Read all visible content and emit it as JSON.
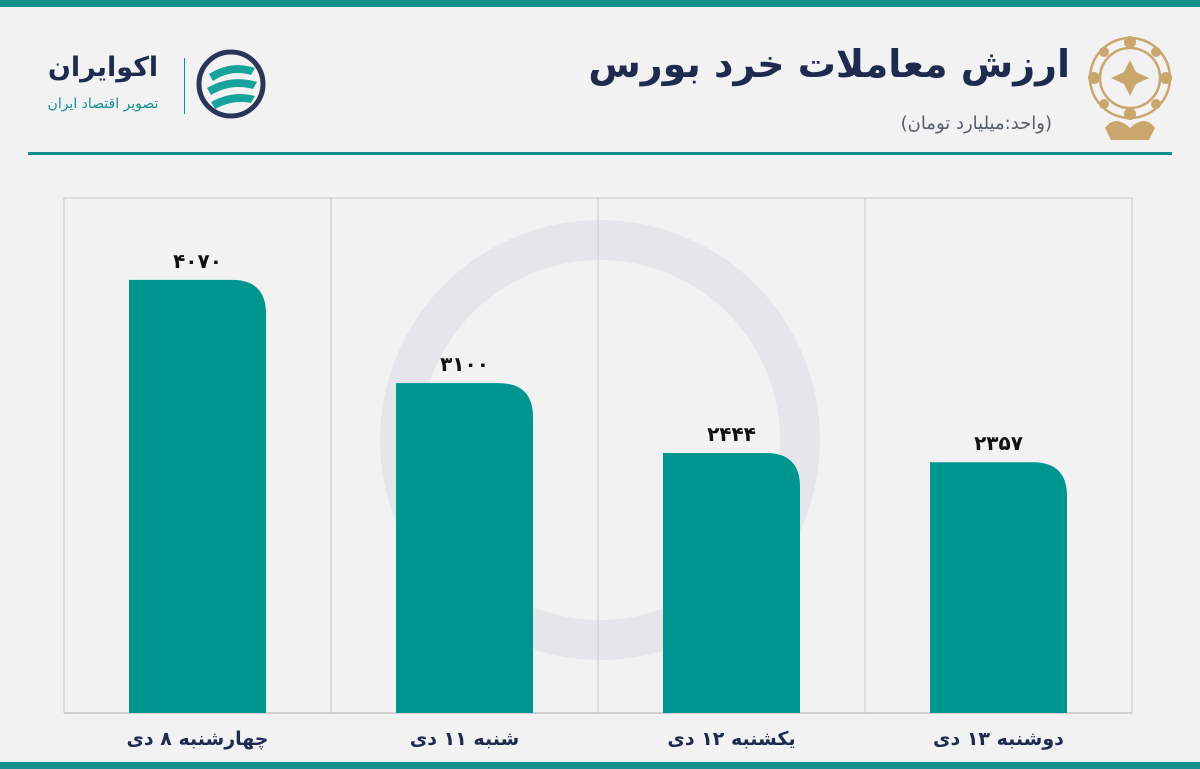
{
  "header": {
    "title": "ارزش معاملات خرد بورس",
    "subtitle": "(واحد:میلیارد تومان)"
  },
  "brand": {
    "name": "اکوایران",
    "tagline": "تصویر اقتصاد ایران"
  },
  "colors": {
    "accent": "#138f8c",
    "bar": "#009690",
    "title": "#1e2b4f",
    "background": "#f2f2f3",
    "emblem": "#c9a66b"
  },
  "icons": [
    "exchange-emblem-icon",
    "ecoiran-logo-icon"
  ],
  "chart_data": {
    "type": "bar",
    "categories": [
      "چهارشنبه ۸ دی",
      "شنبه ۱۱ دی",
      "یکشنبه ۱۲ دی",
      "دوشنبه ۱۳ دی"
    ],
    "values": [
      4070,
      3100,
      2444,
      2357
    ],
    "value_labels": [
      "۴۰۷۰",
      "۳۱۰۰",
      "۲۴۴۴",
      "۲۳۵۷"
    ],
    "ylim": [
      0,
      4840
    ],
    "grid": "vertical-separators",
    "legend": "none",
    "xlabel": "",
    "ylabel": ""
  }
}
